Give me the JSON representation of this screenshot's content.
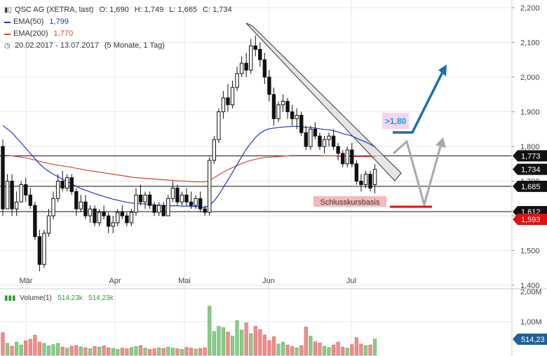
{
  "header": {
    "symbol_line": "QSC AG (XETRA, last)",
    "ohlc": {
      "o_label": "O:",
      "o": "1,690",
      "h_label": "H:",
      "h": "1,749",
      "l_label": "L:",
      "l": "1,665",
      "c_label": "C:",
      "c": "1,734"
    },
    "ema50": {
      "label": "EMA(50)",
      "value": "1,799",
      "color": "#2233cc"
    },
    "ema200": {
      "label": "EMA(200)",
      "value": "1,770",
      "color": "#dd4433"
    },
    "range": "20.02.2017 - 13.07.2017",
    "range_note": "(5 Monate, 1 Tag)",
    "icons": {
      "chart_type": "candlestick-icon",
      "range": "clock-icon"
    }
  },
  "volume_legend": {
    "label": "Volume(1)",
    "v1": "514,23k",
    "v2": "514,23k"
  },
  "colors": {
    "up": "#2e9e2e",
    "down": "#dd3333",
    "candle": "#111111",
    "grid": "#e8e8e8",
    "arrow_blue": "#1a6fb5",
    "arrow_gray": "#a8a8a8",
    "support_red": "#e01010"
  },
  "chart_data": {
    "type": "candlestick",
    "y_axis": {
      "ticks": [
        "2,200",
        "2,100",
        "2,000",
        "1,900",
        "1,800",
        "1,700",
        "1,600",
        "1,500",
        "1,400"
      ],
      "min": 1.4,
      "max": 2.2
    },
    "x_axis": {
      "ticks": [
        "Mär",
        "Apr",
        "Mai",
        "Jun",
        "Jul"
      ]
    },
    "volume_axis": {
      "ticks": [
        "2,00M",
        "1,00M"
      ]
    },
    "price_levels": [
      {
        "value": 1.773,
        "label": "1,773"
      },
      {
        "value": 1.685,
        "label": "1,685"
      },
      {
        "value": 1.612,
        "label": "1,612"
      }
    ],
    "value_tags": [
      {
        "value": 1.773,
        "label": "1,773",
        "color": "#111111"
      },
      {
        "value": 1.734,
        "label": "1,734",
        "color": "#111111"
      },
      {
        "value": 1.685,
        "label": "1,685",
        "color": "#111111"
      },
      {
        "value": 1.612,
        "label": "1,612",
        "color": "#111111"
      },
      {
        "value": 1.593,
        "label": "1,593",
        "color": "#e01010"
      }
    ],
    "volume_tag": "514,23",
    "annotations": {
      "target_label": ">1,80",
      "support_label": "Schlusskursbasis"
    },
    "candles": [
      [
        1.8,
        1.82,
        1.6,
        1.62
      ],
      [
        1.62,
        1.72,
        1.62,
        1.7
      ],
      [
        1.7,
        1.72,
        1.6,
        1.62
      ],
      [
        1.62,
        1.67,
        1.6,
        1.64
      ],
      [
        1.64,
        1.7,
        1.64,
        1.69
      ],
      [
        1.69,
        1.71,
        1.64,
        1.66
      ],
      [
        1.66,
        1.68,
        1.62,
        1.63
      ],
      [
        1.63,
        1.64,
        1.53,
        1.54
      ],
      [
        1.54,
        1.56,
        1.44,
        1.46
      ],
      [
        1.46,
        1.56,
        1.45,
        1.55
      ],
      [
        1.55,
        1.62,
        1.54,
        1.6
      ],
      [
        1.6,
        1.67,
        1.59,
        1.65
      ],
      [
        1.65,
        1.72,
        1.64,
        1.7
      ],
      [
        1.7,
        1.73,
        1.67,
        1.68
      ],
      [
        1.68,
        1.72,
        1.67,
        1.71
      ],
      [
        1.71,
        1.72,
        1.66,
        1.67
      ],
      [
        1.67,
        1.68,
        1.6,
        1.62
      ],
      [
        1.62,
        1.66,
        1.61,
        1.64
      ],
      [
        1.64,
        1.66,
        1.59,
        1.6
      ],
      [
        1.6,
        1.63,
        1.58,
        1.62
      ],
      [
        1.62,
        1.63,
        1.57,
        1.58
      ],
      [
        1.58,
        1.62,
        1.57,
        1.61
      ],
      [
        1.61,
        1.63,
        1.59,
        1.6
      ],
      [
        1.6,
        1.61,
        1.55,
        1.57
      ],
      [
        1.57,
        1.6,
        1.55,
        1.58
      ],
      [
        1.58,
        1.62,
        1.57,
        1.61
      ],
      [
        1.61,
        1.63,
        1.59,
        1.6
      ],
      [
        1.6,
        1.61,
        1.57,
        1.58
      ],
      [
        1.58,
        1.62,
        1.57,
        1.61
      ],
      [
        1.61,
        1.68,
        1.6,
        1.66
      ],
      [
        1.66,
        1.69,
        1.63,
        1.64
      ],
      [
        1.64,
        1.67,
        1.62,
        1.66
      ],
      [
        1.66,
        1.67,
        1.62,
        1.63
      ],
      [
        1.63,
        1.64,
        1.6,
        1.61
      ],
      [
        1.61,
        1.64,
        1.6,
        1.63
      ],
      [
        1.63,
        1.64,
        1.6,
        1.6
      ],
      [
        1.6,
        1.66,
        1.6,
        1.65
      ],
      [
        1.65,
        1.7,
        1.64,
        1.68
      ],
      [
        1.68,
        1.69,
        1.63,
        1.64
      ],
      [
        1.64,
        1.67,
        1.63,
        1.66
      ],
      [
        1.66,
        1.68,
        1.63,
        1.64
      ],
      [
        1.64,
        1.67,
        1.62,
        1.63
      ],
      [
        1.63,
        1.66,
        1.62,
        1.65
      ],
      [
        1.65,
        1.67,
        1.61,
        1.62
      ],
      [
        1.62,
        1.63,
        1.6,
        1.61
      ],
      [
        1.61,
        1.77,
        1.6,
        1.76
      ],
      [
        1.76,
        1.83,
        1.75,
        1.82
      ],
      [
        1.82,
        1.91,
        1.81,
        1.9
      ],
      [
        1.9,
        1.96,
        1.88,
        1.94
      ],
      [
        1.94,
        1.98,
        1.9,
        1.92
      ],
      [
        1.92,
        1.99,
        1.91,
        1.97
      ],
      [
        1.97,
        2.03,
        1.96,
        2.01
      ],
      [
        2.01,
        2.06,
        2.0,
        2.04
      ],
      [
        2.04,
        2.07,
        2.0,
        2.02
      ],
      [
        2.02,
        2.11,
        2.01,
        2.09
      ],
      [
        2.09,
        2.12,
        2.06,
        2.08
      ],
      [
        2.08,
        2.1,
        2.03,
        2.05
      ],
      [
        2.05,
        2.07,
        1.98,
        2.0
      ],
      [
        2.0,
        2.02,
        1.93,
        1.95
      ],
      [
        1.95,
        1.97,
        1.86,
        1.88
      ],
      [
        1.88,
        1.93,
        1.87,
        1.92
      ],
      [
        1.92,
        1.95,
        1.9,
        1.93
      ],
      [
        1.93,
        1.94,
        1.88,
        1.9
      ],
      [
        1.9,
        1.92,
        1.86,
        1.88
      ],
      [
        1.88,
        1.91,
        1.85,
        1.89
      ],
      [
        1.89,
        1.9,
        1.83,
        1.84
      ],
      [
        1.84,
        1.86,
        1.79,
        1.8
      ],
      [
        1.8,
        1.86,
        1.79,
        1.85
      ],
      [
        1.85,
        1.87,
        1.82,
        1.83
      ],
      [
        1.83,
        1.84,
        1.79,
        1.8
      ],
      [
        1.8,
        1.83,
        1.78,
        1.82
      ],
      [
        1.82,
        1.84,
        1.8,
        1.83
      ],
      [
        1.83,
        1.85,
        1.79,
        1.8
      ],
      [
        1.8,
        1.81,
        1.76,
        1.78
      ],
      [
        1.78,
        1.79,
        1.74,
        1.75
      ],
      [
        1.75,
        1.8,
        1.74,
        1.79
      ],
      [
        1.79,
        1.81,
        1.74,
        1.75
      ],
      [
        1.75,
        1.76,
        1.69,
        1.7
      ],
      [
        1.7,
        1.72,
        1.67,
        1.69
      ],
      [
        1.69,
        1.73,
        1.68,
        1.72
      ],
      [
        1.72,
        1.73,
        1.67,
        1.68
      ],
      [
        1.69,
        1.749,
        1.665,
        1.734
      ]
    ],
    "volume_k": [
      720,
      380,
      290,
      420,
      330,
      460,
      510,
      640,
      420,
      380,
      300,
      340,
      380,
      260,
      230,
      290,
      310,
      270,
      240,
      210,
      280,
      260,
      300,
      240,
      220,
      190,
      230,
      210,
      250,
      280,
      310,
      230,
      190,
      210,
      240,
      220,
      260,
      230,
      210,
      190,
      250,
      230,
      200,
      220,
      240,
      1560,
      760,
      920,
      880,
      740,
      610,
      1100,
      800,
      1030,
      690,
      920,
      820,
      650,
      470,
      590,
      360,
      420,
      330,
      280,
      240,
      310,
      900,
      610,
      430,
      390,
      290,
      250,
      330,
      420,
      260,
      230,
      340,
      560,
      360,
      310,
      330,
      514.23
    ],
    "ema50": [
      1.86,
      1.85,
      1.84,
      1.825,
      1.81,
      1.795,
      1.78,
      1.765,
      1.75,
      1.738,
      1.728,
      1.72,
      1.713,
      1.706,
      1.699,
      1.692,
      1.685,
      1.679,
      1.674,
      1.669,
      1.664,
      1.66,
      1.656,
      1.652,
      1.648,
      1.645,
      1.642,
      1.639,
      1.637,
      1.636,
      1.635,
      1.634,
      1.633,
      1.632,
      1.631,
      1.63,
      1.629,
      1.629,
      1.629,
      1.628,
      1.628,
      1.627,
      1.627,
      1.626,
      1.624,
      1.63,
      1.643,
      1.66,
      1.682,
      1.703,
      1.725,
      1.748,
      1.77,
      1.792,
      1.81,
      1.826,
      1.838,
      1.846,
      1.851,
      1.853,
      1.855,
      1.856,
      1.857,
      1.858,
      1.858,
      1.857,
      1.855,
      1.855,
      1.853,
      1.851,
      1.849,
      1.848,
      1.845,
      1.842,
      1.837,
      1.834,
      1.83,
      1.824,
      1.818,
      1.813,
      1.806,
      1.799
    ],
    "ema200": [
      1.775,
      1.774,
      1.773,
      1.771,
      1.769,
      1.767,
      1.764,
      1.761,
      1.757,
      1.754,
      1.751,
      1.748,
      1.746,
      1.744,
      1.742,
      1.74,
      1.737,
      1.735,
      1.732,
      1.73,
      1.728,
      1.726,
      1.724,
      1.722,
      1.72,
      1.718,
      1.716,
      1.714,
      1.712,
      1.71,
      1.709,
      1.708,
      1.707,
      1.706,
      1.705,
      1.704,
      1.703,
      1.702,
      1.701,
      1.7,
      1.7,
      1.699,
      1.698,
      1.698,
      1.698,
      1.702,
      1.71,
      1.718,
      1.726,
      1.733,
      1.739,
      1.745,
      1.751,
      1.756,
      1.76,
      1.763,
      1.766,
      1.768,
      1.769,
      1.77,
      1.771,
      1.772,
      1.773,
      1.774,
      1.774,
      1.774,
      1.774,
      1.774,
      1.774,
      1.774,
      1.773,
      1.773,
      1.773,
      1.772,
      1.772,
      1.772,
      1.771,
      1.771,
      1.771,
      1.771,
      1.77,
      1.77
    ]
  }
}
